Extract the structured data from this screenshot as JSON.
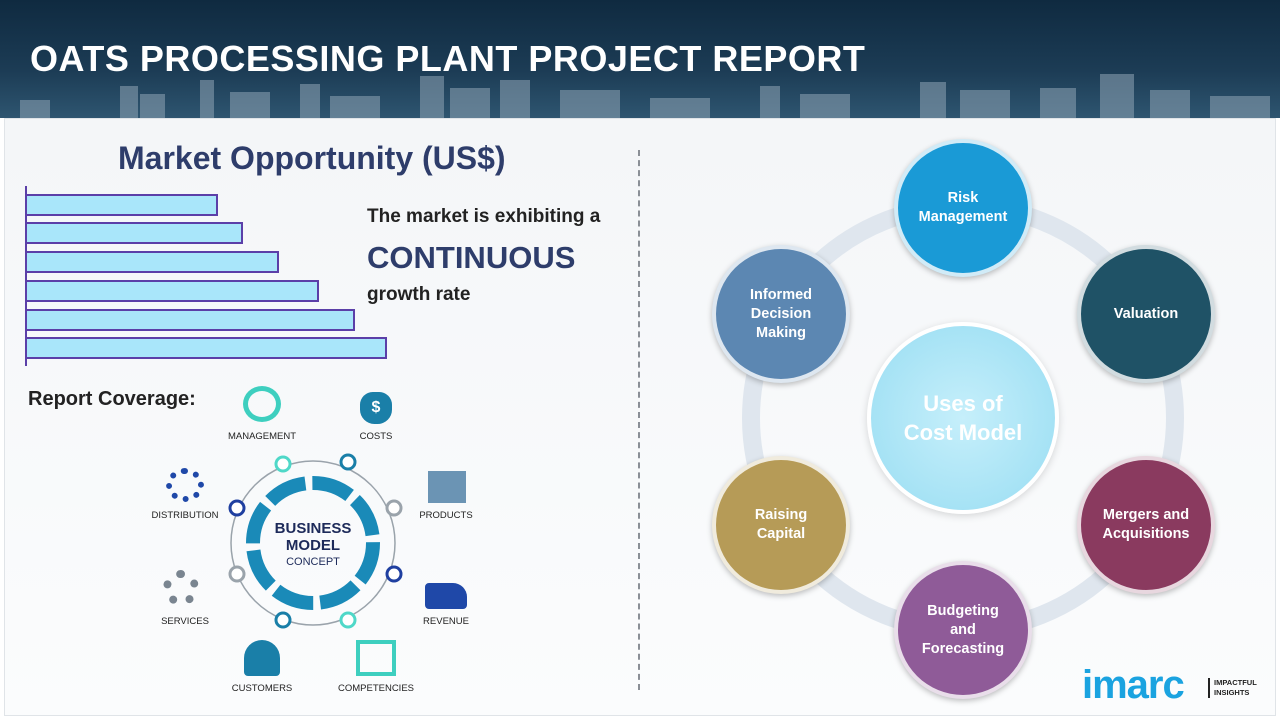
{
  "header": {
    "title": "OATS PROCESSING PLANT PROJECT REPORT"
  },
  "market": {
    "heading": "Market Opportunity (US$)",
    "line1": "The market is exhibiting a",
    "emphasis": "CONTINUOUS",
    "line2": "growth rate",
    "bar_levels": [
      0.53,
      0.6,
      0.7,
      0.81,
      0.91,
      1.0
    ]
  },
  "coverage": {
    "label": "Report Coverage:",
    "center_line1": "BUSINESS",
    "center_line2": "MODEL",
    "center_line3": "CONCEPT",
    "items": [
      {
        "label": "MANAGEMENT",
        "icon": "lightbulb-cycle-icon"
      },
      {
        "label": "COSTS",
        "icon": "money-bag-icon"
      },
      {
        "label": "PRODUCTS",
        "icon": "box-icon"
      },
      {
        "label": "REVENUE",
        "icon": "hand-coins-icon"
      },
      {
        "label": "COMPETENCIES",
        "icon": "org-chart-icon"
      },
      {
        "label": "CUSTOMERS",
        "icon": "user-icon"
      },
      {
        "label": "SERVICES",
        "icon": "gears-icon"
      },
      {
        "label": "DISTRIBUTION",
        "icon": "network-icon"
      }
    ]
  },
  "uses": {
    "center": "Uses of Cost Model",
    "nodes": [
      {
        "label": "Risk Management",
        "color": "#1a9ad6"
      },
      {
        "label": "Valuation",
        "color": "#1f5266"
      },
      {
        "label": "Mergers and Acquisitions",
        "color": "#8a3a5f"
      },
      {
        "label": "Budgeting and Forecasting",
        "color": "#8f5b98"
      },
      {
        "label": "Raising Capital",
        "color": "#b69b57"
      },
      {
        "label": "Informed Decision Making",
        "color": "#5c87b2"
      }
    ]
  },
  "logo": {
    "brand": "imarc",
    "tagline1": "IMPACTFUL",
    "tagline2": "INSIGHTS"
  }
}
